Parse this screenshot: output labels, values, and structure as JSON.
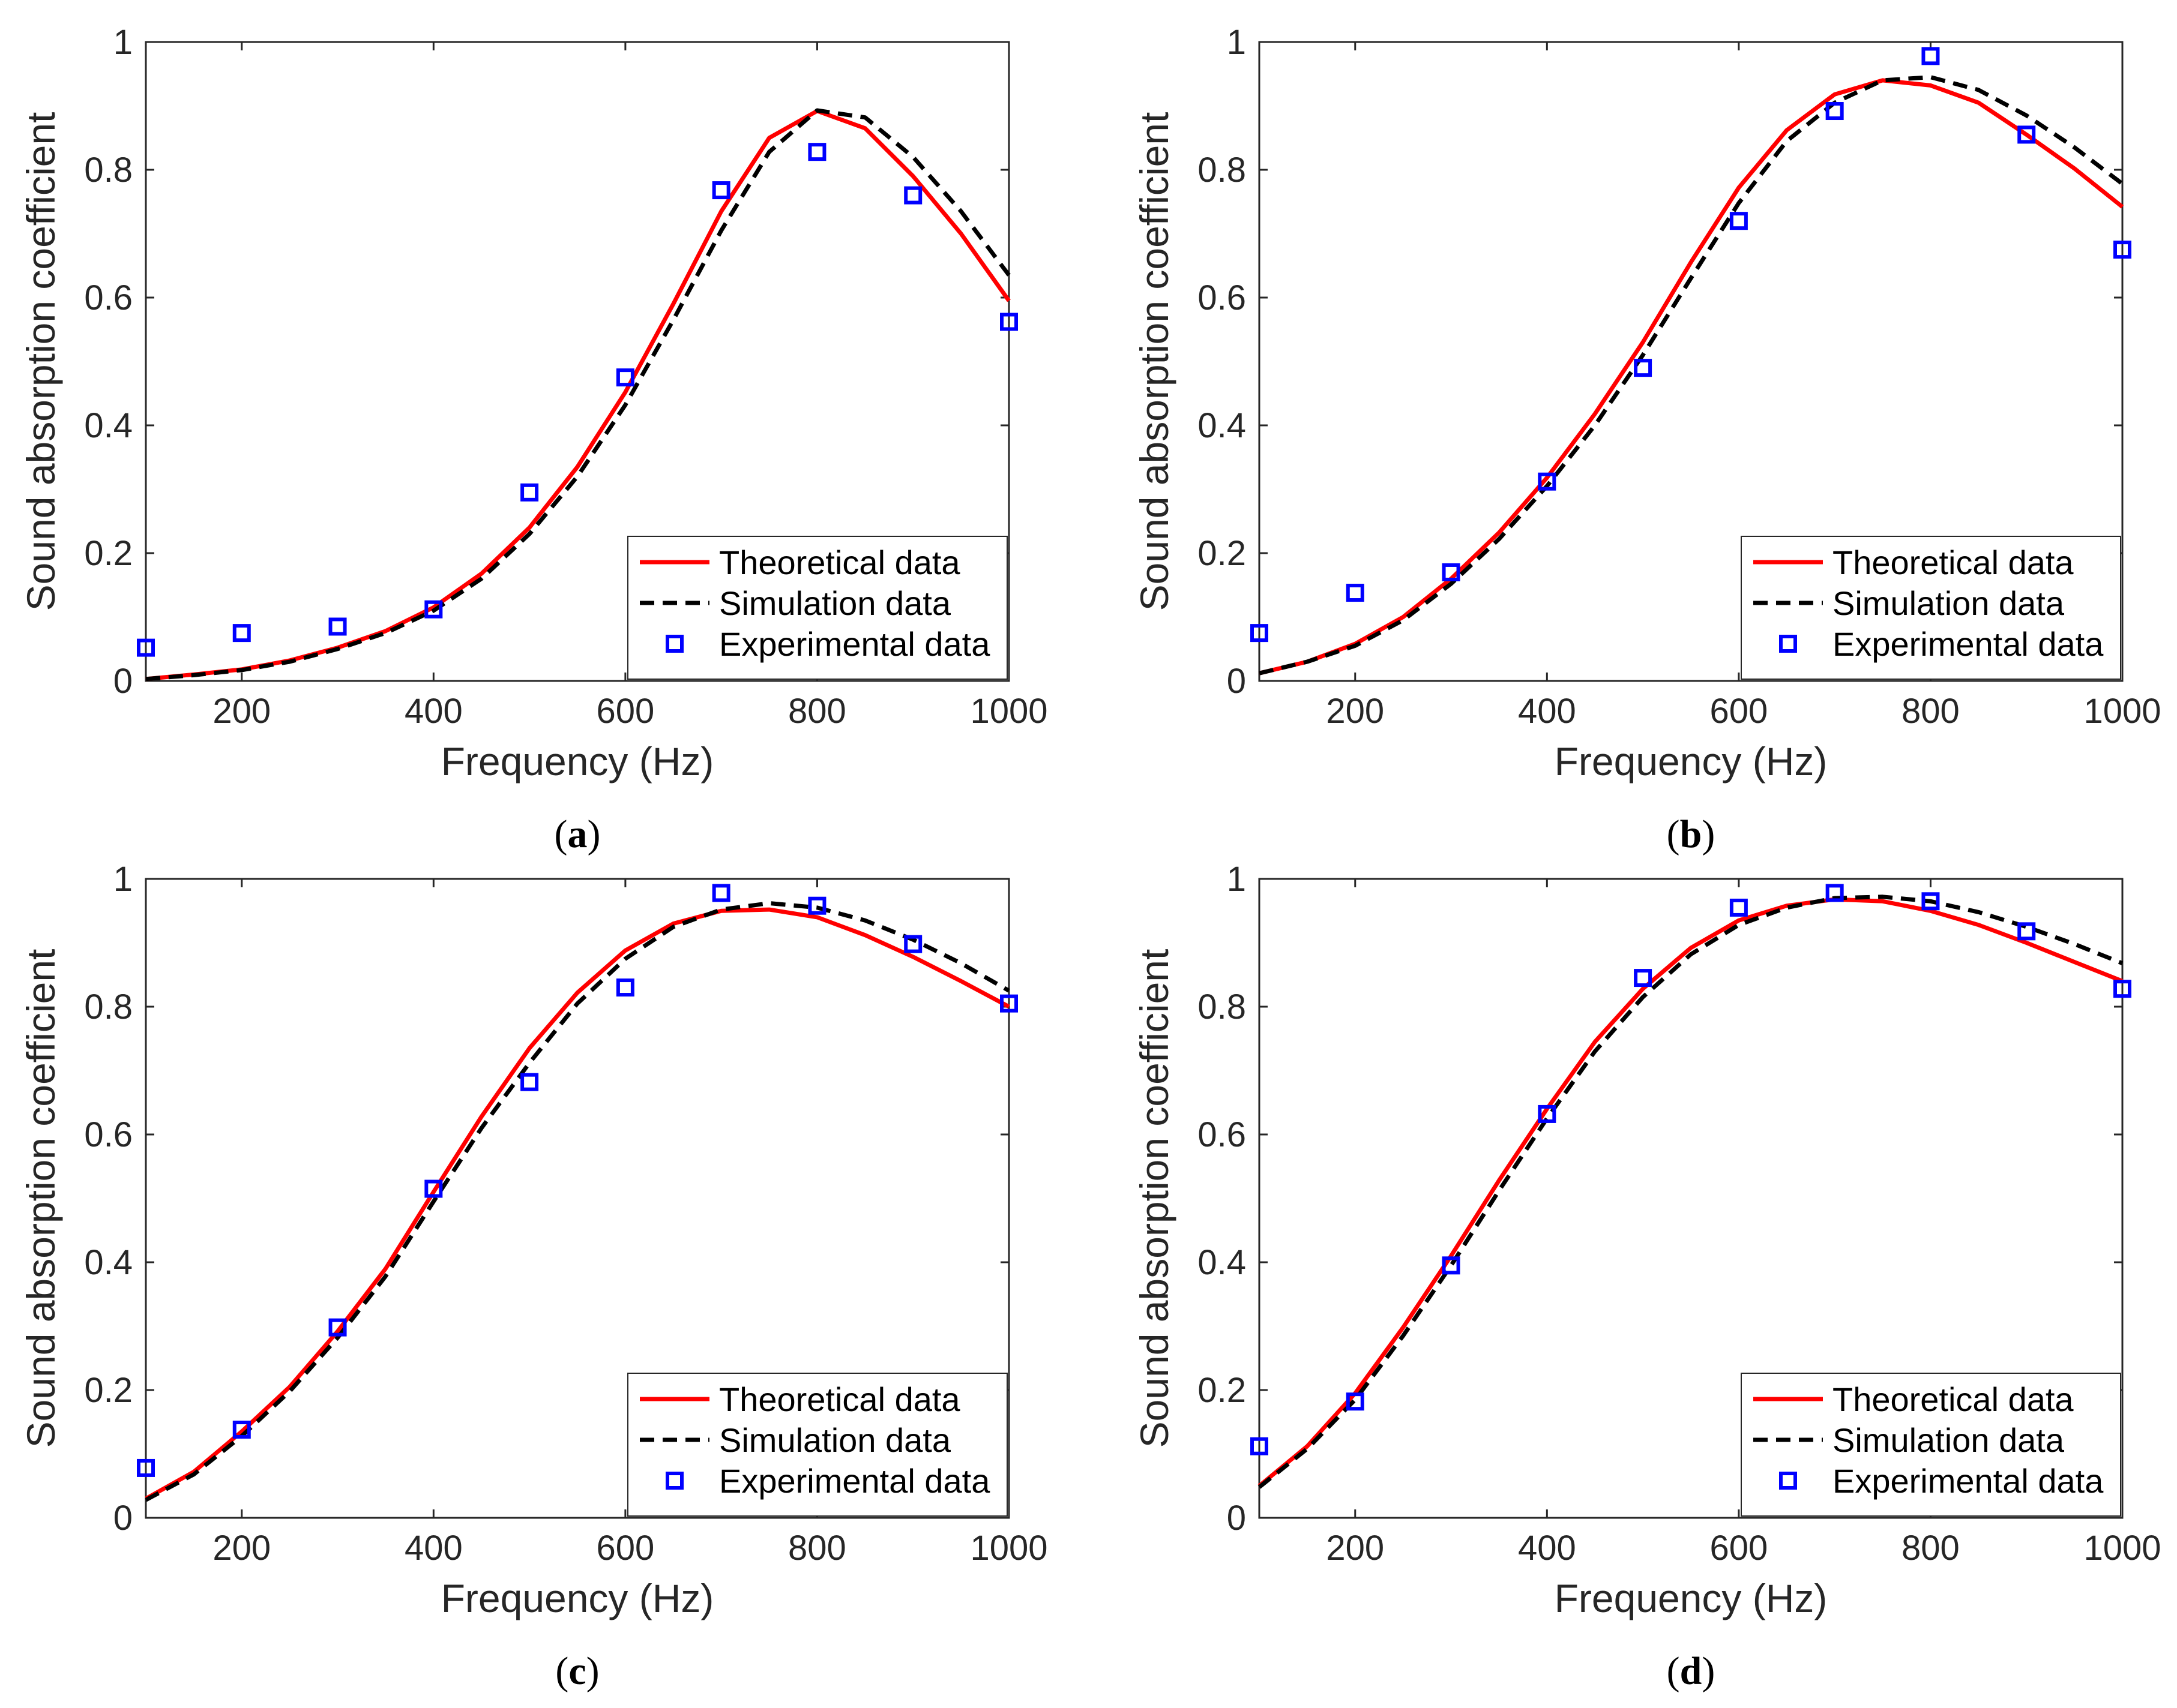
{
  "colors": {
    "theoretical": "#ff0000",
    "simulation": "#000000",
    "experimental": "#0000ff",
    "axis": "#262626"
  },
  "chart_data": [
    {
      "type": "line",
      "caption": "a",
      "xlabel": "Frequency (Hz)",
      "ylabel": "Sound absorption coefficient",
      "xlim": [
        100,
        1000
      ],
      "ylim": [
        0,
        1
      ],
      "xticks": [
        200,
        400,
        600,
        800,
        1000
      ],
      "yticks": [
        0,
        0.2,
        0.4,
        0.6,
        0.8,
        1
      ],
      "ytick_labels": [
        "0",
        "0.2",
        "0.4",
        "0.6",
        "0.8",
        "1"
      ],
      "legend_position": "bottom-right",
      "series": [
        {
          "name": "Theoretical data",
          "style": "solid",
          "x": [
            100,
            150,
            200,
            250,
            300,
            350,
            400,
            450,
            500,
            550,
            600,
            650,
            700,
            750,
            800,
            850,
            900,
            950,
            1000
          ],
          "y": [
            0.003,
            0.01,
            0.018,
            0.032,
            0.052,
            0.078,
            0.115,
            0.168,
            0.24,
            0.335,
            0.452,
            0.59,
            0.735,
            0.85,
            0.892,
            0.865,
            0.79,
            0.7,
            0.595
          ]
        },
        {
          "name": "Simulation data",
          "style": "dashed",
          "x": [
            100,
            150,
            200,
            250,
            300,
            350,
            400,
            450,
            500,
            550,
            600,
            650,
            700,
            750,
            800,
            850,
            900,
            950,
            1000
          ],
          "y": [
            0.003,
            0.009,
            0.017,
            0.03,
            0.05,
            0.075,
            0.11,
            0.16,
            0.23,
            0.32,
            0.432,
            0.565,
            0.705,
            0.828,
            0.893,
            0.882,
            0.82,
            0.735,
            0.635
          ]
        },
        {
          "name": "Experimental data",
          "style": "marker",
          "x": [
            100,
            200,
            300,
            400,
            500,
            600,
            700,
            800,
            900,
            1000
          ],
          "y": [
            0.052,
            0.075,
            0.085,
            0.112,
            0.295,
            0.475,
            0.768,
            0.828,
            0.76,
            0.562
          ]
        }
      ]
    },
    {
      "type": "line",
      "caption": "b",
      "xlabel": "Frequency (Hz)",
      "ylabel": "Sound absorption coefficient",
      "xlim": [
        100,
        1000
      ],
      "ylim": [
        0,
        1
      ],
      "xticks": [
        200,
        400,
        600,
        800,
        1000
      ],
      "yticks": [
        0,
        0.2,
        0.4,
        0.6,
        0.8,
        1
      ],
      "ytick_labels": [
        "0",
        "0.2",
        "0.4",
        "0.6",
        "0.8",
        "1"
      ],
      "legend_position": "bottom-right",
      "series": [
        {
          "name": "Theoretical data",
          "style": "solid",
          "x": [
            100,
            150,
            200,
            250,
            300,
            350,
            400,
            450,
            500,
            550,
            600,
            650,
            700,
            750,
            800,
            850,
            900,
            950,
            1000
          ],
          "y": [
            0.012,
            0.03,
            0.058,
            0.1,
            0.16,
            0.232,
            0.318,
            0.418,
            0.53,
            0.655,
            0.772,
            0.862,
            0.918,
            0.94,
            0.932,
            0.905,
            0.855,
            0.802,
            0.742
          ]
        },
        {
          "name": "Simulation data",
          "style": "dashed",
          "x": [
            100,
            150,
            200,
            250,
            300,
            350,
            400,
            450,
            500,
            550,
            600,
            650,
            700,
            750,
            800,
            850,
            900,
            950,
            1000
          ],
          "y": [
            0.012,
            0.03,
            0.055,
            0.095,
            0.152,
            0.222,
            0.305,
            0.4,
            0.51,
            0.63,
            0.748,
            0.845,
            0.905,
            0.94,
            0.945,
            0.925,
            0.885,
            0.835,
            0.778
          ]
        },
        {
          "name": "Experimental data",
          "style": "marker",
          "x": [
            100,
            200,
            300,
            400,
            500,
            600,
            700,
            800,
            900,
            1000
          ],
          "y": [
            0.075,
            0.138,
            0.17,
            0.312,
            0.49,
            0.72,
            0.892,
            0.978,
            0.855,
            0.675
          ]
        }
      ]
    },
    {
      "type": "line",
      "caption": "c",
      "xlabel": "Frequency (Hz)",
      "ylabel": "Sound absorption coefficient",
      "xlim": [
        100,
        1000
      ],
      "ylim": [
        0,
        1
      ],
      "xticks": [
        200,
        400,
        600,
        800,
        1000
      ],
      "yticks": [
        0,
        0.2,
        0.4,
        0.6,
        0.8,
        1
      ],
      "ytick_labels": [
        "0",
        "0.2",
        "0.4",
        "0.6",
        "0.8",
        "1"
      ],
      "legend_position": "bottom-right",
      "series": [
        {
          "name": "Theoretical data",
          "style": "solid",
          "x": [
            100,
            150,
            200,
            250,
            300,
            350,
            400,
            450,
            500,
            550,
            600,
            650,
            700,
            750,
            800,
            850,
            900,
            950,
            1000
          ],
          "y": [
            0.03,
            0.072,
            0.135,
            0.205,
            0.292,
            0.39,
            0.51,
            0.628,
            0.735,
            0.822,
            0.888,
            0.93,
            0.95,
            0.952,
            0.94,
            0.912,
            0.878,
            0.84,
            0.8
          ]
        },
        {
          "name": "Simulation data",
          "style": "dashed",
          "x": [
            100,
            150,
            200,
            250,
            300,
            350,
            400,
            450,
            500,
            550,
            600,
            650,
            700,
            750,
            800,
            850,
            900,
            950,
            1000
          ],
          "y": [
            0.028,
            0.068,
            0.128,
            0.198,
            0.282,
            0.378,
            0.495,
            0.61,
            0.712,
            0.805,
            0.875,
            0.925,
            0.952,
            0.962,
            0.955,
            0.935,
            0.905,
            0.868,
            0.825
          ]
        },
        {
          "name": "Experimental data",
          "style": "marker",
          "x": [
            100,
            200,
            300,
            400,
            500,
            600,
            700,
            800,
            900,
            1000
          ],
          "y": [
            0.078,
            0.138,
            0.298,
            0.515,
            0.682,
            0.83,
            0.978,
            0.958,
            0.898,
            0.805
          ]
        }
      ]
    },
    {
      "type": "line",
      "caption": "d",
      "xlabel": "Frequency (Hz)",
      "ylabel": "Sound absorption coefficient",
      "xlim": [
        100,
        1000
      ],
      "ylim": [
        0,
        1
      ],
      "xticks": [
        200,
        400,
        600,
        800,
        1000
      ],
      "yticks": [
        0,
        0.2,
        0.4,
        0.6,
        0.8,
        1
      ],
      "ytick_labels": [
        "0",
        "0.2",
        "0.4",
        "0.6",
        "0.8",
        "1"
      ],
      "legend_position": "bottom-right",
      "series": [
        {
          "name": "Theoretical data",
          "style": "solid",
          "x": [
            100,
            150,
            200,
            250,
            300,
            350,
            400,
            450,
            500,
            550,
            600,
            650,
            700,
            750,
            800,
            850,
            900,
            950,
            1000
          ],
          "y": [
            0.05,
            0.112,
            0.195,
            0.298,
            0.41,
            0.528,
            0.64,
            0.745,
            0.828,
            0.892,
            0.935,
            0.958,
            0.968,
            0.965,
            0.95,
            0.928,
            0.9,
            0.87,
            0.84
          ]
        },
        {
          "name": "Simulation data",
          "style": "dashed",
          "x": [
            100,
            150,
            200,
            250,
            300,
            350,
            400,
            450,
            500,
            550,
            600,
            650,
            700,
            750,
            800,
            850,
            900,
            950,
            1000
          ],
          "y": [
            0.048,
            0.108,
            0.185,
            0.285,
            0.395,
            0.512,
            0.625,
            0.73,
            0.815,
            0.882,
            0.928,
            0.955,
            0.97,
            0.972,
            0.965,
            0.948,
            0.925,
            0.898,
            0.868
          ]
        },
        {
          "name": "Experimental data",
          "style": "marker",
          "x": [
            100,
            200,
            300,
            400,
            500,
            600,
            700,
            800,
            900,
            1000
          ],
          "y": [
            0.112,
            0.182,
            0.395,
            0.632,
            0.845,
            0.955,
            0.978,
            0.965,
            0.918,
            0.828
          ]
        }
      ]
    }
  ]
}
